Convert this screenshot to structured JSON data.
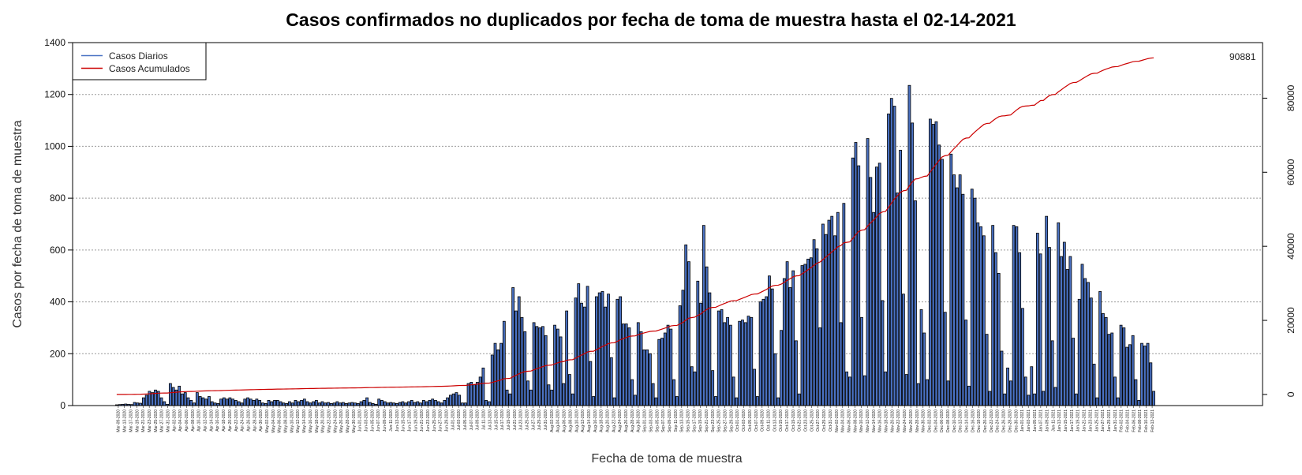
{
  "chart_data": {
    "type": "bar",
    "title": "Casos confirmados no duplicados por fecha de toma de muestra hasta el 02-14-2021",
    "xlabel": "Fecha de toma de muestra",
    "ylabel": "Casos por fecha de toma de muestra",
    "ylim": [
      0,
      1400
    ],
    "y_ticks": [
      "0",
      "200",
      "400",
      "600",
      "800",
      "1000",
      "1200",
      "1400"
    ],
    "y2lim": [
      -3000,
      95000
    ],
    "y2_ticks": [
      "0",
      "20000",
      "40000",
      "60000",
      "80000"
    ],
    "grid": "horizontal dotted",
    "legend_position": "top-left",
    "start_date": "2020-03-09",
    "end_date": "2021-02-13",
    "series": [
      {
        "name": "Casos Diarios",
        "color": "#4a72c4",
        "values": [
          3,
          4,
          5,
          6,
          5,
          4,
          12,
          10,
          9,
          30,
          40,
          55,
          50,
          60,
          55,
          30,
          15,
          5,
          85,
          70,
          60,
          75,
          45,
          50,
          30,
          20,
          10,
          50,
          35,
          30,
          25,
          35,
          15,
          10,
          8,
          25,
          30,
          25,
          30,
          25,
          20,
          15,
          10,
          25,
          30,
          25,
          20,
          25,
          20,
          10,
          8,
          20,
          15,
          20,
          20,
          15,
          10,
          8,
          15,
          10,
          20,
          15,
          20,
          25,
          15,
          10,
          15,
          20,
          10,
          15,
          10,
          12,
          8,
          10,
          15,
          10,
          12,
          8,
          10,
          12,
          10,
          8,
          15,
          20,
          30,
          12,
          8,
          5,
          25,
          20,
          15,
          10,
          12,
          10,
          8,
          12,
          15,
          10,
          15,
          20,
          12,
          15,
          10,
          20,
          15,
          20,
          25,
          20,
          15,
          10,
          20,
          30,
          40,
          45,
          50,
          40,
          10,
          10,
          85,
          90,
          80,
          90,
          110,
          145,
          20,
          15,
          195,
          240,
          215,
          240,
          325,
          60,
          45,
          455,
          365,
          420,
          340,
          285,
          95,
          60,
          320,
          305,
          300,
          305,
          270,
          80,
          60,
          310,
          295,
          265,
          85,
          365,
          120,
          45,
          415,
          470,
          395,
          380,
          460,
          170,
          35,
          420,
          435,
          440,
          380,
          430,
          185,
          30,
          410,
          420,
          315,
          315,
          300,
          100,
          40,
          320,
          285,
          215,
          215,
          200,
          85,
          30,
          255,
          260,
          280,
          310,
          295,
          100,
          35,
          385,
          445,
          620,
          555,
          150,
          130,
          480,
          395,
          695,
          535,
          435,
          135,
          35,
          365,
          370,
          320,
          340,
          310,
          110,
          30,
          325,
          330,
          320,
          345,
          340,
          140,
          35,
          400,
          410,
          420,
          500,
          450,
          200,
          30,
          290,
          490,
          555,
          455,
          520,
          250,
          45,
          540,
          545,
          565,
          570,
          640,
          605,
          300,
          700,
          660,
          715,
          730,
          655,
          745,
          320,
          780,
          130,
          110,
          955,
          1015,
          925,
          340,
          115,
          1030,
          880,
          745,
          920,
          935,
          405,
          130,
          1125,
          1185,
          1155,
          820,
          985,
          430,
          120,
          1235,
          1090,
          790,
          85,
          370,
          280,
          100,
          1105,
          1085,
          1095,
          1005,
          950,
          360,
          95,
          970,
          890,
          840,
          890,
          815,
          330,
          75,
          835,
          800,
          705,
          690,
          655,
          275,
          55,
          695,
          590,
          510,
          210,
          45,
          145,
          95,
          695,
          690,
          590,
          375,
          110,
          40,
          150,
          45,
          665,
          585,
          55,
          730,
          610,
          250,
          70,
          705,
          575,
          630,
          525,
          575,
          260,
          45,
          410,
          545,
          490,
          475,
          415,
          160,
          30,
          440,
          355,
          340,
          275,
          280,
          110,
          30,
          310,
          300,
          225,
          235,
          270,
          100,
          20,
          240,
          230,
          240,
          165,
          55
        ]
      },
      {
        "name": "Casos Acumulados",
        "color": "#cc0000",
        "final_value": 90881,
        "final_label": "90881"
      }
    ],
    "x_tick_labels": [
      "Mar-09-2020",
      "Mar-13-2020",
      "Mar-17-2020",
      "Mar-19-2020",
      "Mar-21-2020",
      "Mar-23-2020",
      "Mar-25-2020",
      "Mar-27-2020",
      "Mar-31-2020",
      "Apr-02-2020",
      "Apr-04-2020",
      "Apr-06-2020",
      "Apr-08-2020",
      "Apr-10-2020",
      "Apr-12-2020",
      "Apr-14-2020",
      "Apr-16-2020",
      "Apr-18-2020",
      "Apr-20-2020",
      "Apr-22-2020",
      "Apr-24-2020",
      "Apr-26-2020",
      "Apr-28-2020",
      "Apr-30-2020",
      "May-02-2020",
      "May-04-2020",
      "May-06-2020",
      "May-08-2020",
      "May-10-2020",
      "May-12-2020",
      "May-14-2020",
      "May-16-2020",
      "May-18-2020",
      "May-20-2020",
      "May-22-2020",
      "May-24-2020",
      "May-26-2020",
      "May-28-2020",
      "May-30-2020",
      "Jun-01-2020",
      "Jun-03-2020",
      "Jun-05-2020",
      "Jun-07-2020",
      "Jun-09-2020",
      "Jun-11-2020",
      "Jun-13-2020",
      "Jun-15-2020",
      "Jun-17-2020",
      "Jun-19-2020",
      "Jun-21-2020",
      "Jun-23-2020",
      "Jun-25-2020",
      "Jun-27-2020",
      "Jun-29-2020",
      "Jul-01-2020",
      "Jul-03-2020",
      "Jul-05-2020",
      "Jul-07-2020",
      "Jul-09-2020",
      "Jul-11-2020",
      "Jul-13-2020",
      "Jul-15-2020",
      "Jul-17-2020",
      "Jul-19-2020",
      "Jul-21-2020",
      "Jul-23-2020",
      "Jul-25-2020",
      "Jul-27-2020",
      "Jul-29-2020",
      "Jul-31-2020",
      "Aug-02-2020",
      "Aug-04-2020",
      "Aug-06-2020",
      "Aug-08-2020",
      "Aug-10-2020",
      "Aug-12-2020",
      "Aug-14-2020",
      "Aug-16-2020",
      "Aug-18-2020",
      "Aug-20-2020",
      "Aug-22-2020",
      "Aug-24-2020",
      "Aug-26-2020",
      "Aug-28-2020",
      "Aug-30-2020",
      "Sep-01-2020",
      "Sep-03-2020",
      "Sep-05-2020",
      "Sep-07-2020",
      "Sep-09-2020",
      "Sep-11-2020",
      "Sep-13-2020",
      "Sep-15-2020",
      "Sep-17-2020",
      "Sep-19-2020",
      "Sep-21-2020",
      "Sep-23-2020",
      "Sep-25-2020",
      "Sep-27-2020",
      "Sep-29-2020",
      "Oct-01-2020",
      "Oct-03-2020",
      "Oct-05-2020",
      "Oct-07-2020",
      "Oct-09-2020",
      "Oct-11-2020",
      "Oct-13-2020",
      "Oct-15-2020",
      "Oct-17-2020",
      "Oct-19-2020",
      "Oct-21-2020",
      "Oct-23-2020",
      "Oct-25-2020",
      "Oct-27-2020",
      "Oct-29-2020",
      "Oct-31-2020",
      "Nov-02-2020",
      "Nov-04-2020",
      "Nov-06-2020",
      "Nov-08-2020",
      "Nov-10-2020",
      "Nov-12-2020",
      "Nov-14-2020",
      "Nov-16-2020",
      "Nov-18-2020",
      "Nov-20-2020",
      "Nov-22-2020",
      "Nov-24-2020",
      "Nov-26-2020",
      "Nov-28-2020",
      "Nov-30-2020",
      "Dec-02-2020",
      "Dec-04-2020",
      "Dec-06-2020",
      "Dec-08-2020",
      "Dec-10-2020",
      "Dec-12-2020",
      "Dec-14-2020",
      "Dec-16-2020",
      "Dec-18-2020",
      "Dec-20-2020",
      "Dec-22-2020",
      "Dec-24-2020",
      "Dec-26-2020",
      "Dec-28-2020",
      "Dec-30-2020",
      "Jan-01-2021",
      "Jan-03-2021",
      "Jan-05-2021",
      "Jan-07-2021",
      "Jan-09-2021",
      "Jan-11-2021",
      "Jan-13-2021",
      "Jan-15-2021",
      "Jan-17-2021",
      "Jan-19-2021",
      "Jan-21-2021",
      "Jan-23-2021",
      "Jan-25-2021",
      "Jan-27-2021",
      "Jan-29-2021",
      "Jan-31-2021",
      "Feb-02-2021",
      "Feb-04-2021",
      "Feb-06-2021",
      "Feb-08-2021",
      "Feb-10-2021",
      "Feb-13-2021"
    ]
  }
}
